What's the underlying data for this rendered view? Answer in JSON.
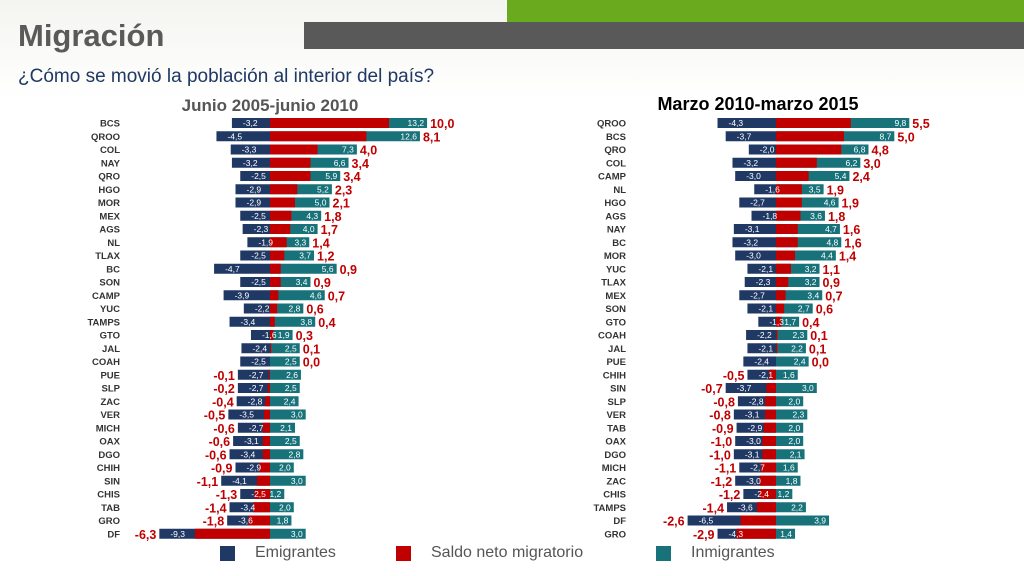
{
  "header": {
    "title": "Migración",
    "subtitle": "¿Cómo se movió la población al interior del país?"
  },
  "colors": {
    "emigrantes": "#203864",
    "saldo": "#c00000",
    "inmigrantes": "#17727a",
    "accent_green": "#6aaa1e",
    "accent_gray": "#595959"
  },
  "legend": {
    "emigrantes": "Emigrantes",
    "saldo": "Saldo neto migratorio",
    "inmigrantes": "Inmigrantes"
  },
  "chart_data": [
    {
      "type": "bar",
      "title": "Junio 2005-junio 2010",
      "categories": [
        "BCS",
        "QROO",
        "COL",
        "NAY",
        "QRO",
        "HGO",
        "MOR",
        "MEX",
        "AGS",
        "NL",
        "TLAX",
        "BC",
        "SON",
        "CAMP",
        "YUC",
        "TAMPS",
        "GTO",
        "JAL",
        "COAH",
        "PUE",
        "SLP",
        "ZAC",
        "VER",
        "MICH",
        "OAX",
        "DGO",
        "CHIH",
        "SIN",
        "CHIS",
        "TAB",
        "GRO",
        "DF"
      ],
      "series": [
        {
          "name": "Emigrantes",
          "values": [
            -3.2,
            -4.5,
            -3.3,
            -3.2,
            -2.5,
            -2.9,
            -2.9,
            -2.5,
            -2.3,
            -1.9,
            -2.5,
            -4.7,
            -2.5,
            -3.9,
            -2.2,
            -3.4,
            -1.6,
            -2.4,
            -2.5,
            -2.7,
            -2.7,
            -2.8,
            -3.5,
            -2.7,
            -3.1,
            -3.4,
            -2.9,
            -4.1,
            -2.5,
            -3.4,
            -3.6,
            -9.3
          ]
        },
        {
          "name": "Saldo neto migratorio",
          "values": [
            10.0,
            8.1,
            4.0,
            3.4,
            3.4,
            2.3,
            2.1,
            1.8,
            1.7,
            1.4,
            1.2,
            0.9,
            0.9,
            0.7,
            0.6,
            0.4,
            0.3,
            0.1,
            0.0,
            -0.1,
            -0.2,
            -0.4,
            -0.5,
            -0.6,
            -0.6,
            -0.6,
            -0.9,
            -1.1,
            -1.3,
            -1.4,
            -1.8,
            -6.3
          ]
        },
        {
          "name": "Inmigrantes",
          "values": [
            13.2,
            12.6,
            7.3,
            6.6,
            5.9,
            5.2,
            5.0,
            4.3,
            4.0,
            3.3,
            3.7,
            5.6,
            3.4,
            4.6,
            2.8,
            3.8,
            1.9,
            2.5,
            2.5,
            2.6,
            2.5,
            2.4,
            3.0,
            2.1,
            2.5,
            2.8,
            2.0,
            3.0,
            1.2,
            2.0,
            1.8,
            3.0
          ]
        }
      ],
      "labels": {
        "emigrantes": [
          "-3,2",
          "-4,5",
          "-3,3",
          "-3,2",
          "-2,5",
          "-2,9",
          "-2,9",
          "-2,5",
          "-2,3",
          "-1,9",
          "-2,5",
          "-4,7",
          "-2,5",
          "-3,9",
          "-2,2",
          "-3,4",
          "-1,6",
          "-2,4",
          "-2,5",
          "-2,7",
          "-2,7",
          "-2,8",
          "-3,5",
          "-2,7",
          "-3,1",
          "-3,4",
          "-2,9",
          "-4,1",
          "-2,5",
          "-3,4",
          "-3,6",
          "-9,3"
        ],
        "saldo": [
          "10,0",
          "8,1",
          "4,0",
          "3,4",
          "3,4",
          "2,3",
          "2,1",
          "1,8",
          "1,7",
          "1,4",
          "1,2",
          "0,9",
          "0,9",
          "0,7",
          "0,6",
          "0,4",
          "0,3",
          "0,1",
          "0,0",
          "-0,1",
          "-0,2",
          "-0,4",
          "-0,5",
          "-0,6",
          "-0,6",
          "-0,6",
          "-0,9",
          "-1,1",
          "-1,3",
          "-1,4",
          "-1,8",
          "-6,3"
        ],
        "inmigrantes": [
          "13,2",
          "12,6",
          "7,3",
          "6,6",
          "5,9",
          "5,2",
          "5,0",
          "4,3",
          "4,0",
          "3,3",
          "3,7",
          "5,6",
          "3,4",
          "4,6",
          "2,8",
          "3,8",
          "1,9",
          "2,5",
          "2,5",
          "2,6",
          "2,5",
          "2,4",
          "3,0",
          "2,1",
          "2,5",
          "2,8",
          "2,0",
          "3,0",
          "1,2",
          "2,0",
          "1,8",
          "3,0"
        ]
      }
    },
    {
      "type": "bar",
      "title": "Marzo 2010-marzo 2015",
      "categories": [
        "QROO",
        "BCS",
        "QRO",
        "COL",
        "CAMP",
        "NL",
        "HGO",
        "AGS",
        "NAY",
        "BC",
        "MOR",
        "YUC",
        "TLAX",
        "MEX",
        "SON",
        "GTO",
        "COAH",
        "JAL",
        "PUE",
        "CHIH",
        "SIN",
        "SLP",
        "VER",
        "TAB",
        "OAX",
        "DGO",
        "MICH",
        "ZAC",
        "CHIS",
        "TAMPS",
        "DF",
        "GRO"
      ],
      "series": [
        {
          "name": "Emigrantes",
          "values": [
            -4.3,
            -3.7,
            -2.0,
            -3.2,
            -3.0,
            -1.6,
            -2.7,
            -1.8,
            -3.1,
            -3.2,
            -3.0,
            -2.1,
            -2.3,
            -2.7,
            -2.1,
            -1.3,
            -2.2,
            -2.1,
            -2.4,
            -2.1,
            -3.7,
            -2.8,
            -3.1,
            -2.9,
            -3.0,
            -3.1,
            -2.7,
            -3.0,
            -2.4,
            -3.6,
            -6.5,
            -4.3
          ]
        },
        {
          "name": "Saldo neto migratorio",
          "values": [
            5.5,
            5.0,
            4.8,
            3.0,
            2.4,
            1.9,
            1.9,
            1.8,
            1.6,
            1.6,
            1.4,
            1.1,
            0.9,
            0.7,
            0.6,
            0.4,
            0.1,
            0.1,
            0.0,
            -0.5,
            -0.7,
            -0.8,
            -0.8,
            -0.9,
            -1.0,
            -1.0,
            -1.1,
            -1.2,
            -1.2,
            -1.4,
            -2.6,
            -2.9
          ]
        },
        {
          "name": "Inmigrantes",
          "values": [
            9.8,
            8.7,
            6.8,
            6.2,
            5.4,
            3.5,
            4.6,
            3.6,
            4.7,
            4.8,
            4.4,
            3.2,
            3.2,
            3.4,
            2.7,
            1.7,
            2.3,
            2.2,
            2.4,
            1.6,
            3.0,
            2.0,
            2.3,
            2.0,
            2.0,
            2.1,
            1.6,
            1.8,
            1.2,
            2.2,
            3.9,
            1.4
          ]
        }
      ],
      "labels": {
        "emigrantes": [
          "-4,3",
          "-3,7",
          "-2,0",
          "-3,2",
          "-3,0",
          "-1,6",
          "-2,7",
          "-1,8",
          "-3,1",
          "-3,2",
          "-3,0",
          "-2,1",
          "-2,3",
          "-2,7",
          "-2,1",
          "-1,3",
          "-2,2",
          "-2,1",
          "-2,4",
          "-2,1",
          "-3,7",
          "-2,8",
          "-3,1",
          "-2,9",
          "-3,0",
          "-3,1",
          "-2,7",
          "-3,0",
          "-2,4",
          "-3,6",
          "-6,5",
          "-4,3"
        ],
        "saldo": [
          "5,5",
          "5,0",
          "4,8",
          "3,0",
          "2,4",
          "1,9",
          "1,9",
          "1,8",
          "1,6",
          "1,6",
          "1,4",
          "1,1",
          "0,9",
          "0,7",
          "0,6",
          "0,4",
          "0,1",
          "0,1",
          "0,0",
          "-0,5",
          "-0,7",
          "-0,8",
          "-0,8",
          "-0,9",
          "-1,0",
          "-1,0",
          "-1,1",
          "-1,2",
          "-1,2",
          "-1,4",
          "-2,6",
          "-2,9"
        ],
        "inmigrantes": [
          "9,8",
          "8,7",
          "6,8",
          "6,2",
          "5,4",
          "3,5",
          "4,6",
          "3,6",
          "4,7",
          "4,8",
          "4,4",
          "3,2",
          "3,2",
          "3,4",
          "2,7",
          "1,7",
          "2,3",
          "2,2",
          "2,4",
          "1,6",
          "3,0",
          "2,0",
          "2,3",
          "2,0",
          "2,0",
          "2,1",
          "1,6",
          "1,8",
          "1,2",
          "2,2",
          "3,9",
          "1,4"
        ]
      }
    }
  ]
}
